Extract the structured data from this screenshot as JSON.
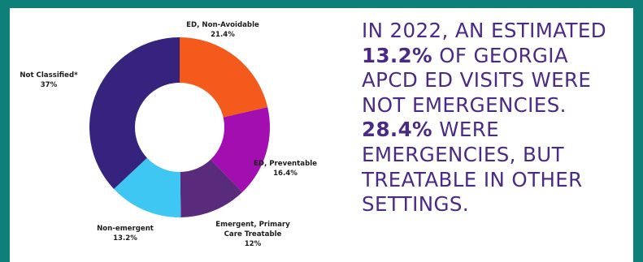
{
  "chart_data": {
    "type": "pie",
    "donut": true,
    "slices": [
      {
        "label": "ED, Non-Avoidable",
        "value_label": "21.4%",
        "value": 21.4,
        "color": "#f45a1c"
      },
      {
        "label": "ED, Preventable",
        "value_label": "16.4%",
        "value": 16.4,
        "color": "#a20eb0"
      },
      {
        "label": "Emergent, Primary Care Treatable",
        "label_lines": [
          "Emergent, Primary",
          "Care Treatable"
        ],
        "value_label": "12%",
        "value": 12,
        "color": "#5a2a7c"
      },
      {
        "label": "Non-emergent",
        "value_label": "13.2%",
        "value": 13.2,
        "color": "#3fc7f3"
      },
      {
        "label": "Not Classified*",
        "value_label": "37%",
        "value": 37,
        "color": "#35237e"
      }
    ]
  },
  "headline": {
    "line1": "IN 2022, AN ESTIMATED",
    "line2_bold": "13.2%",
    "line2_rest": " OF GEORGIA",
    "line3": "APCD ED VISITS WERE",
    "line4": "NOT EMERGENCIES.",
    "line5_bold": "28.4%",
    "line5_rest": " WERE",
    "line6": "EMERGENCIES, BUT",
    "line7": "TREATABLE IN OTHER",
    "line8": "SETTINGS."
  }
}
